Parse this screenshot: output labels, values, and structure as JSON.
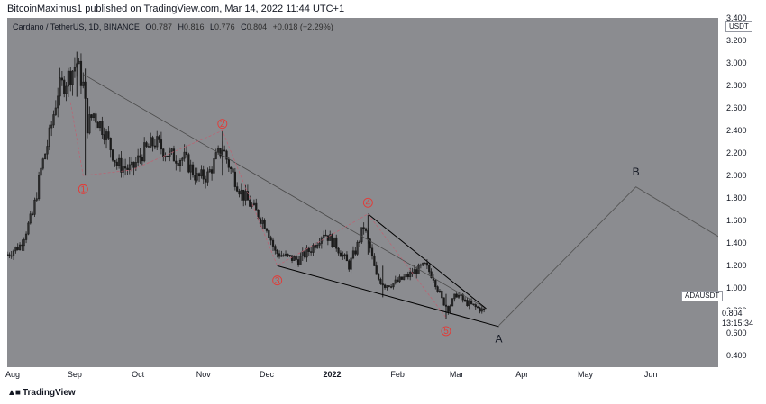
{
  "header": {
    "text": "BitcoinMaximus1 published on TradingView.com, Mar 14, 2022 11:44 UTC+1"
  },
  "legend": {
    "symbol": "Cardano / TetherUS, 1D, BINANCE",
    "o_label": "O",
    "o": "0.787",
    "h_label": "H",
    "h": "0.816",
    "l_label": "L",
    "l": "0.776",
    "c_label": "C",
    "c": "0.804",
    "change": "+0.018 (+2.29%)"
  },
  "axis": {
    "currency": "USDT",
    "last_price": "0.804",
    "countdown": "13:15:34",
    "ticker_tag": "ADAUSDT"
  },
  "footer": {
    "brand": "TradingView"
  },
  "colors": {
    "background": "#8b8c90",
    "candle": "#1a1a1a",
    "wave_path": "#c06070",
    "wave_label": "#e53935",
    "trendline": "#3a3a3a"
  },
  "chart_data": {
    "type": "candlestick",
    "yticks": [
      "3.400",
      "3.200",
      "3.000",
      "2.800",
      "2.600",
      "2.400",
      "2.200",
      "2.000",
      "1.800",
      "1.600",
      "1.400",
      "1.200",
      "1.000",
      "0.800",
      "0.600",
      "0.400"
    ],
    "ylim": [
      0.3,
      3.4
    ],
    "xticks": [
      {
        "label": "Aug",
        "date": "2021-08-01"
      },
      {
        "label": "Sep",
        "date": "2021-09-01"
      },
      {
        "label": "Oct",
        "date": "2021-10-01"
      },
      {
        "label": "Nov",
        "date": "2021-11-01"
      },
      {
        "label": "Dec",
        "date": "2021-12-01"
      },
      {
        "label": "2022",
        "date": "2022-01-01",
        "bold": true
      },
      {
        "label": "Feb",
        "date": "2022-02-01"
      },
      {
        "label": "Mar",
        "date": "2022-03-01"
      },
      {
        "label": "Apr",
        "date": "2022-04-01"
      },
      {
        "label": "May",
        "date": "2022-05-01"
      },
      {
        "label": "Jun",
        "date": "2022-06-01"
      }
    ],
    "xrange": [
      "2021-07-31",
      "2022-07-03"
    ],
    "price_path": [
      [
        "2021-07-31",
        1.3
      ],
      [
        "2021-08-06",
        1.38
      ],
      [
        "2021-08-12",
        1.65
      ],
      [
        "2021-08-16",
        2.05
      ],
      [
        "2021-08-20",
        2.35
      ],
      [
        "2021-08-24",
        2.75
      ],
      [
        "2021-08-28",
        2.85
      ],
      [
        "2021-09-02",
        3.0
      ],
      [
        "2021-09-05",
        2.8
      ],
      [
        "2021-09-07",
        2.45
      ],
      [
        "2021-09-10",
        2.55
      ],
      [
        "2021-09-15",
        2.4
      ],
      [
        "2021-09-21",
        2.1
      ],
      [
        "2021-09-28",
        2.05
      ],
      [
        "2021-10-03",
        2.2
      ],
      [
        "2021-10-09",
        2.3
      ],
      [
        "2021-10-16",
        2.18
      ],
      [
        "2021-10-23",
        2.15
      ],
      [
        "2021-10-29",
        1.98
      ],
      [
        "2021-11-03",
        2.0
      ],
      [
        "2021-11-07",
        2.15
      ],
      [
        "2021-11-10",
        2.25
      ],
      [
        "2021-11-14",
        2.05
      ],
      [
        "2021-11-19",
        1.85
      ],
      [
        "2021-11-25",
        1.7
      ],
      [
        "2021-12-01",
        1.55
      ],
      [
        "2021-12-05",
        1.32
      ],
      [
        "2021-12-10",
        1.28
      ],
      [
        "2021-12-16",
        1.25
      ],
      [
        "2021-12-22",
        1.35
      ],
      [
        "2021-12-28",
        1.5
      ],
      [
        "2022-01-03",
        1.38
      ],
      [
        "2022-01-09",
        1.2
      ],
      [
        "2022-01-13",
        1.38
      ],
      [
        "2022-01-16",
        1.55
      ],
      [
        "2022-01-19",
        1.35
      ],
      [
        "2022-01-22",
        1.1
      ],
      [
        "2022-01-26",
        1.03
      ],
      [
        "2022-01-31",
        1.05
      ],
      [
        "2022-02-05",
        1.1
      ],
      [
        "2022-02-09",
        1.15
      ],
      [
        "2022-02-14",
        1.2
      ],
      [
        "2022-02-18",
        1.1
      ],
      [
        "2022-02-22",
        0.9
      ],
      [
        "2022-02-25",
        0.82
      ],
      [
        "2022-03-01",
        0.95
      ],
      [
        "2022-03-05",
        0.88
      ],
      [
        "2022-03-09",
        0.84
      ],
      [
        "2022-03-14",
        0.8
      ]
    ],
    "spikes": [
      {
        "date": "2021-09-02",
        "high": 3.1,
        "low": 2.7
      },
      {
        "date": "2021-09-06",
        "high": 2.95,
        "low": 2.0
      },
      {
        "date": "2021-11-10",
        "high": 2.4,
        "low": 2.0
      },
      {
        "date": "2022-01-18",
        "high": 1.65,
        "low": 1.3
      },
      {
        "date": "2022-01-25",
        "high": 1.2,
        "low": 0.92
      },
      {
        "date": "2022-02-24",
        "high": 0.95,
        "low": 0.73
      }
    ],
    "wave_points": [
      {
        "label": "1",
        "date": "2021-09-05",
        "price": 2.0,
        "label_price": 1.88
      },
      {
        "label": "2",
        "date": "2021-11-10",
        "price": 2.4,
        "label_price": 2.46
      },
      {
        "label": "3",
        "date": "2021-12-06",
        "price": 1.2,
        "label_price": 1.07
      },
      {
        "label": "4",
        "date": "2022-01-18",
        "price": 1.66,
        "label_price": 1.76
      },
      {
        "label": "5",
        "date": "2022-02-24",
        "price": 0.74,
        "label_price": 0.62
      }
    ],
    "wave_extra_path": [
      [
        "2021-08-30",
        2.65
      ],
      [
        "2021-09-05",
        2.0
      ],
      [
        "2021-09-28",
        2.05
      ],
      [
        "2021-11-10",
        2.4
      ],
      [
        "2021-12-06",
        1.2
      ],
      [
        "2022-01-18",
        1.66
      ],
      [
        "2022-02-24",
        0.74
      ]
    ],
    "trendlines": [
      {
        "from": [
          "2021-09-05",
          2.9
        ],
        "to": [
          "2022-03-15",
          0.82
        ]
      },
      {
        "from": [
          "2021-12-06",
          1.2
        ],
        "to": [
          "2022-03-21",
          0.66
        ]
      },
      {
        "from": [
          "2022-01-18",
          1.66
        ],
        "to": [
          "2022-03-15",
          0.82
        ]
      }
    ],
    "projection": [
      [
        "2022-03-21",
        0.67
      ],
      [
        "2022-05-25",
        1.9
      ],
      [
        "2022-07-03",
        1.46
      ]
    ],
    "projection_labels": [
      {
        "label": "A",
        "date": "2022-03-21",
        "price": 0.52
      },
      {
        "label": "B",
        "date": "2022-05-25",
        "price": 2.0
      }
    ]
  }
}
